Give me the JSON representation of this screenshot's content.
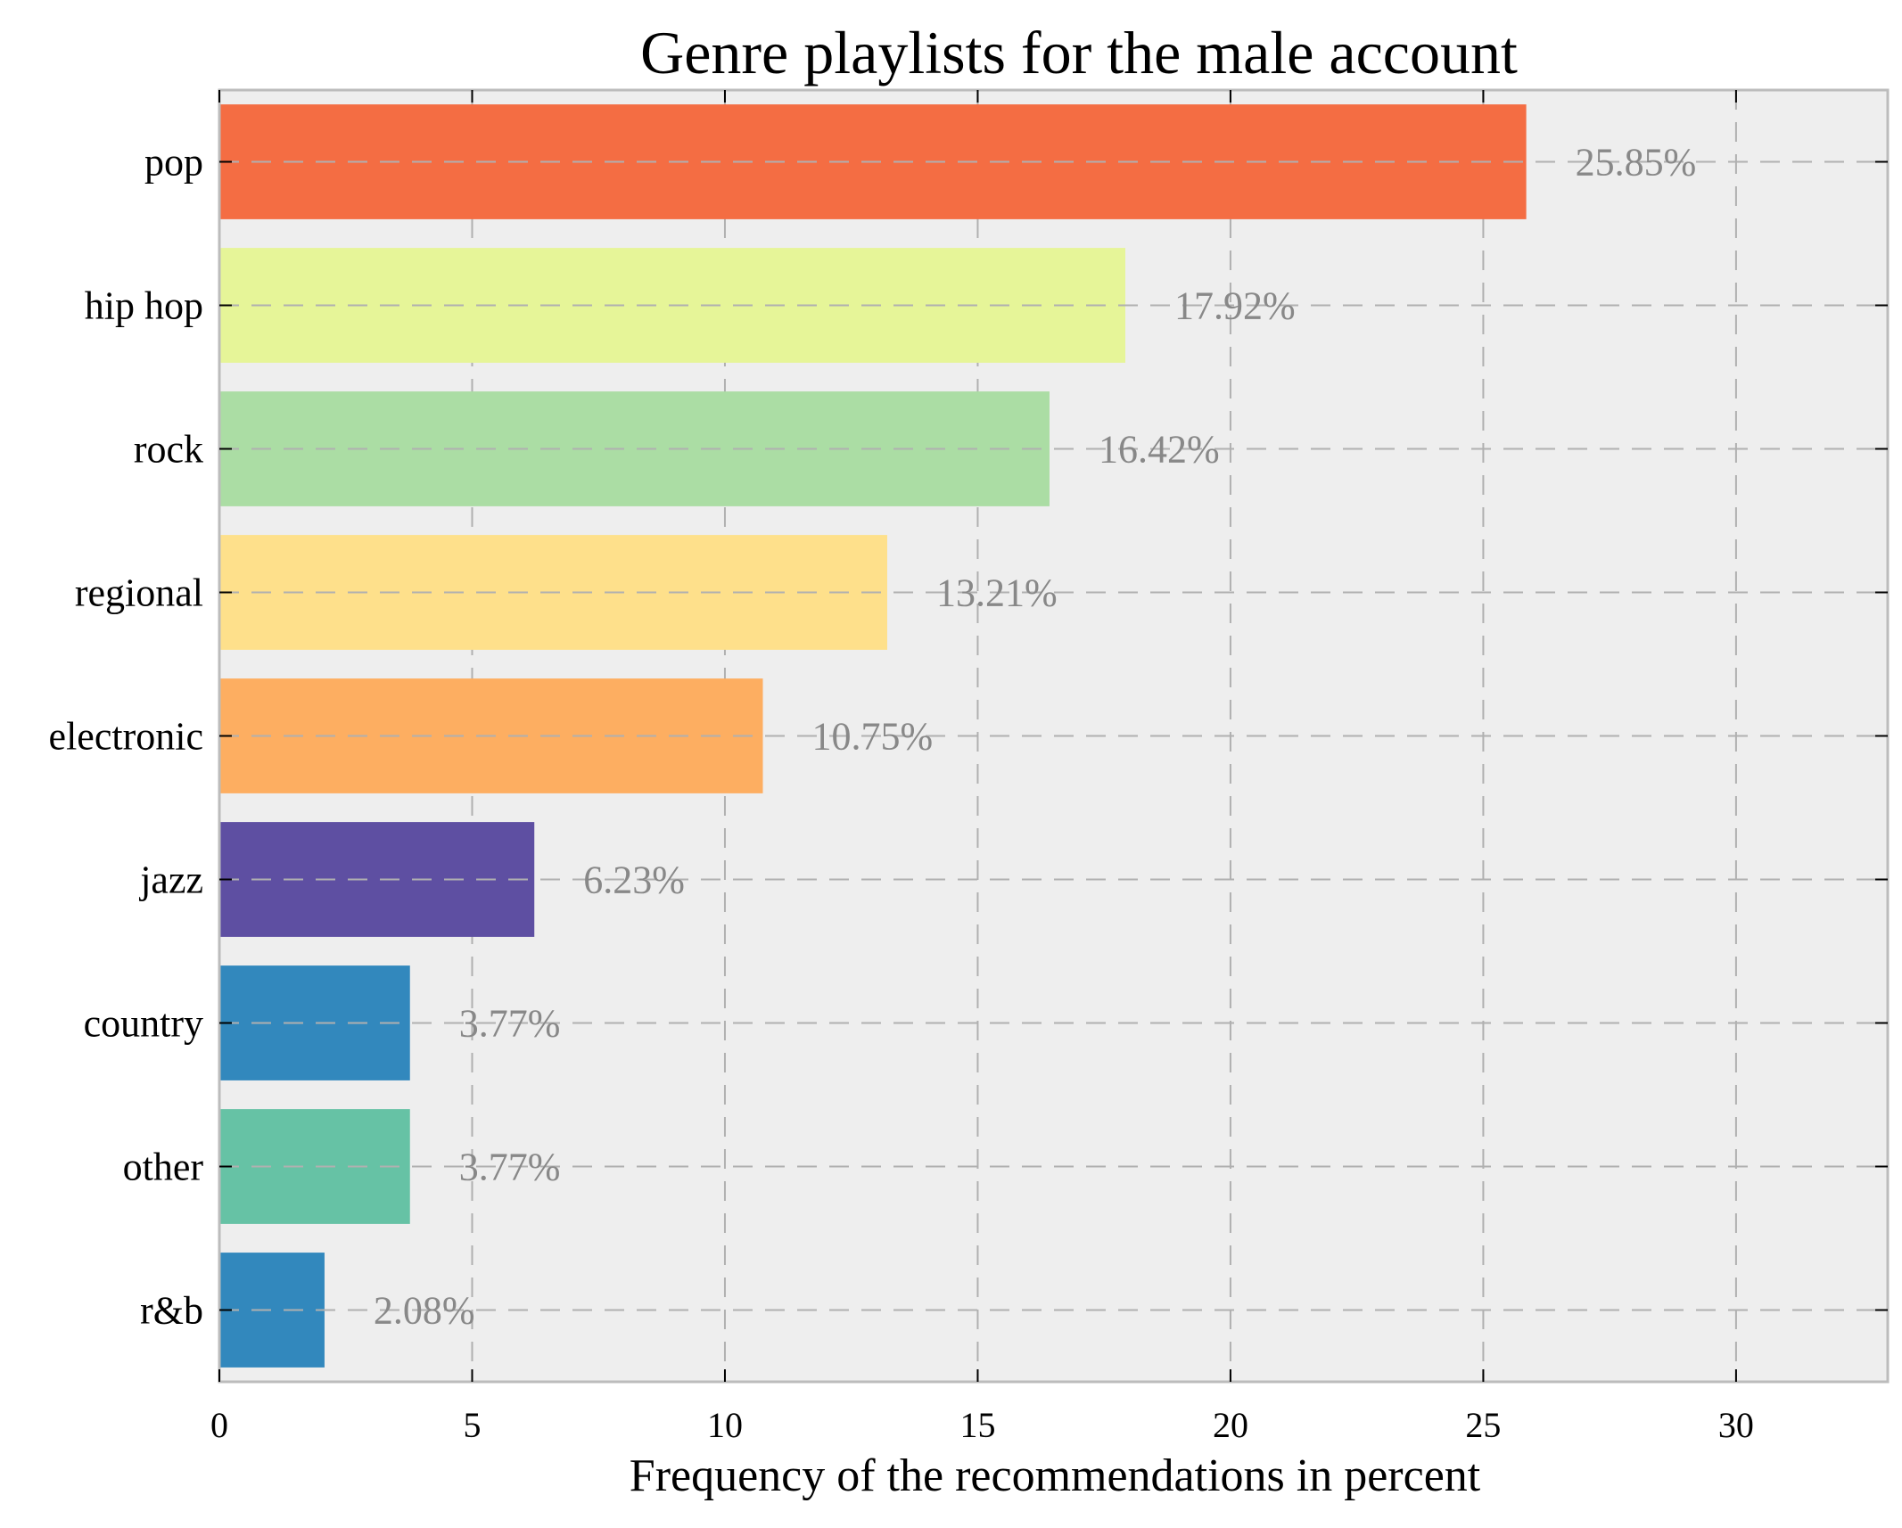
{
  "chart_data": {
    "type": "bar",
    "orientation": "horizontal",
    "title": "Genre playlists for the male account",
    "xlabel": "Frequency of the recommendations in percent",
    "ylabel": "",
    "xlim": [
      0,
      33
    ],
    "xticks": [
      0,
      5,
      10,
      15,
      20,
      25,
      30
    ],
    "grid": true,
    "categories": [
      "pop",
      "hip hop",
      "rock",
      "regional",
      "electronic",
      "jazz",
      "country",
      "other",
      "r&b"
    ],
    "values": [
      25.85,
      17.92,
      16.42,
      13.21,
      10.75,
      6.23,
      3.77,
      3.77,
      2.08
    ],
    "data_labels": [
      "25.85%",
      "17.92%",
      "16.42%",
      "13.21%",
      "10.75%",
      "6.23%",
      "3.77%",
      "3.77%",
      "2.08%"
    ],
    "colors": [
      "#f46d43",
      "#e6f598",
      "#abdda4",
      "#fee08b",
      "#fdae61",
      "#5e4fa2",
      "#3288bd",
      "#66c2a5",
      "#3288bd"
    ],
    "plot_background": "#eeeeee",
    "grid_color": "#b0b0b0",
    "label_color": "#888888"
  }
}
